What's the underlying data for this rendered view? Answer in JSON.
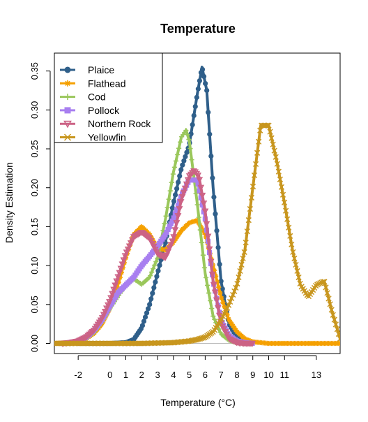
{
  "chart_data": {
    "type": "line",
    "title": "Temperature",
    "xlabel": "Temperature (°C)",
    "ylabel": "Density Estimation",
    "xlim": [
      -3.5,
      14.5
    ],
    "ylim": [
      -0.013,
      0.373
    ],
    "x_ticks": [
      -2,
      0,
      1,
      2,
      3,
      4,
      5,
      6,
      7,
      8,
      9,
      10,
      11,
      13
    ],
    "y_ticks": [
      0.0,
      0.05,
      0.1,
      0.15,
      0.2,
      0.25,
      0.3,
      0.35
    ],
    "y_tick_labels": [
      "0.00",
      "0.05",
      "0.10",
      "0.15",
      "0.20",
      "0.25",
      "0.30",
      "0.35"
    ],
    "baseline": 0,
    "legend_position": "top-left",
    "series": [
      {
        "name": "Plaice",
        "color": "#2f5f8a",
        "marker": "circle",
        "x": [
          -2,
          0,
          1,
          1.5,
          2,
          2.5,
          3,
          3.5,
          4,
          4.5,
          5,
          5.5,
          5.8,
          6.1,
          6.5,
          7,
          7.5,
          8,
          8.5,
          9
        ],
        "y": [
          0,
          0,
          0.001,
          0.005,
          0.02,
          0.05,
          0.09,
          0.13,
          0.18,
          0.225,
          0.255,
          0.32,
          0.355,
          0.325,
          0.2,
          0.08,
          0.025,
          0.008,
          0.002,
          0
        ]
      },
      {
        "name": "Flathead",
        "color": "#f5a000",
        "marker": "asterisk",
        "x": [
          -3.5,
          -2.5,
          -2,
          -1.5,
          -1,
          -0.5,
          0,
          0.5,
          1,
          1.5,
          2,
          2.5,
          3,
          3.5,
          4,
          4.5,
          5,
          5.5,
          6,
          6.5,
          7,
          7.5,
          8,
          8.5,
          9,
          10,
          11,
          12,
          13,
          14.5
        ],
        "y": [
          0,
          0.001,
          0.002,
          0.006,
          0.013,
          0.025,
          0.045,
          0.075,
          0.11,
          0.14,
          0.15,
          0.14,
          0.122,
          0.12,
          0.13,
          0.145,
          0.155,
          0.158,
          0.14,
          0.1,
          0.06,
          0.03,
          0.015,
          0.006,
          0.002,
          0,
          0,
          0,
          0,
          0
        ]
      },
      {
        "name": "Cod",
        "color": "#9ac75b",
        "marker": "plus",
        "x": [
          -2.5,
          -2,
          -1.5,
          -1,
          -0.5,
          0,
          0.5,
          1,
          1.5,
          2,
          2.5,
          3,
          3.5,
          4,
          4.5,
          4.8,
          5,
          5.5,
          6,
          6.5,
          7,
          7.5,
          8,
          8.5,
          9
        ],
        "y": [
          0,
          0.002,
          0.006,
          0.014,
          0.028,
          0.045,
          0.06,
          0.075,
          0.083,
          0.076,
          0.085,
          0.11,
          0.16,
          0.22,
          0.265,
          0.274,
          0.26,
          0.18,
          0.09,
          0.035,
          0.012,
          0.004,
          0.001,
          0,
          0
        ]
      },
      {
        "name": "Pollock",
        "color": "#a87ff0",
        "marker": "square",
        "x": [
          -3,
          -2.5,
          -2,
          -1.5,
          -1,
          -0.5,
          0,
          0.5,
          1,
          1.5,
          2,
          2.5,
          3,
          3.5,
          4,
          4.5,
          5,
          5.5,
          6,
          6.5,
          7,
          7.5,
          8,
          8.5,
          9
        ],
        "y": [
          0,
          0.001,
          0.003,
          0.008,
          0.017,
          0.03,
          0.048,
          0.065,
          0.075,
          0.085,
          0.1,
          0.112,
          0.125,
          0.14,
          0.16,
          0.19,
          0.21,
          0.21,
          0.16,
          0.08,
          0.03,
          0.01,
          0.003,
          0.001,
          0
        ]
      },
      {
        "name": "Northern Rock",
        "color": "#cc6285",
        "marker": "triangle-down",
        "x": [
          -3,
          -2.5,
          -2,
          -1.5,
          -1,
          -0.5,
          0,
          0.5,
          1,
          1.5,
          2,
          2.5,
          3,
          3.5,
          4,
          4.5,
          5,
          5.3,
          5.6,
          6,
          6.5,
          7,
          7.5,
          8,
          8.5,
          9
        ],
        "y": [
          0,
          0.001,
          0.003,
          0.008,
          0.017,
          0.032,
          0.055,
          0.085,
          0.115,
          0.137,
          0.143,
          0.135,
          0.115,
          0.11,
          0.135,
          0.185,
          0.215,
          0.222,
          0.215,
          0.17,
          0.08,
          0.025,
          0.006,
          0.001,
          0,
          0
        ]
      },
      {
        "name": "Yellowfin",
        "color": "#c8961e",
        "marker": "x",
        "x": [
          -3.5,
          0,
          2,
          4,
          5,
          5.5,
          6,
          6.5,
          7,
          7.5,
          8,
          8.5,
          9,
          9.5,
          10,
          10.5,
          11,
          11.5,
          12,
          12.5,
          13,
          13.5,
          14,
          14.5
        ],
        "y": [
          0,
          0,
          0,
          0.001,
          0.003,
          0.005,
          0.008,
          0.015,
          0.03,
          0.05,
          0.075,
          0.12,
          0.2,
          0.28,
          0.28,
          0.235,
          0.18,
          0.12,
          0.075,
          0.06,
          0.075,
          0.08,
          0.04,
          0.006
        ]
      }
    ]
  }
}
